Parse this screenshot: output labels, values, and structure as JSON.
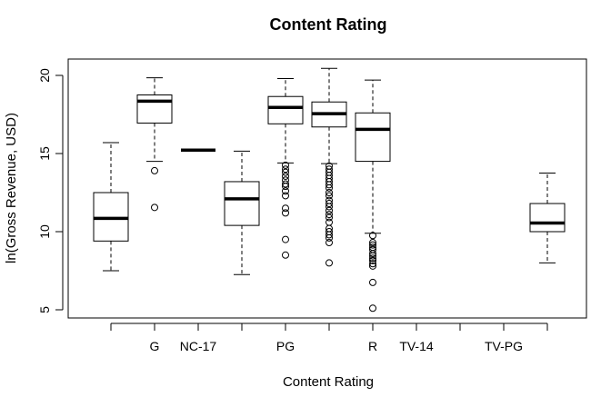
{
  "chart_data": {
    "type": "boxplot",
    "title": "Content Rating",
    "xlabel": "Content Rating",
    "ylabel": "ln(Gross Revenue, USD)",
    "ylim": [
      4.5,
      21
    ],
    "yticks": [
      5,
      10,
      15,
      20
    ],
    "grid": false,
    "groups": [
      {
        "slot": 1,
        "label": "",
        "whisker_low": 7.5,
        "q1": 9.4,
        "median": 10.85,
        "q3": 12.5,
        "whisker_high": 15.7,
        "outliers": []
      },
      {
        "slot": 2,
        "label": "G",
        "whisker_low": 14.5,
        "q1": 16.95,
        "median": 18.35,
        "q3": 18.75,
        "whisker_high": 19.85,
        "outliers": [
          13.9,
          11.55
        ]
      },
      {
        "slot": 3,
        "label": "NC-17",
        "whisker_low": 15.22,
        "q1": 15.22,
        "median": 15.22,
        "q3": 15.22,
        "whisker_high": 15.22,
        "outliers": []
      },
      {
        "slot": 4,
        "label": "",
        "whisker_low": 7.25,
        "q1": 10.4,
        "median": 12.1,
        "q3": 13.2,
        "whisker_high": 15.15,
        "outliers": []
      },
      {
        "slot": 5,
        "label": "PG",
        "whisker_low": 14.4,
        "q1": 16.9,
        "median": 17.95,
        "q3": 18.65,
        "whisker_high": 19.8,
        "outliers": [
          14.25,
          14.0,
          13.8,
          13.55,
          13.3,
          13.05,
          12.9,
          12.6,
          12.3,
          11.5,
          11.2,
          9.5,
          8.5
        ]
      },
      {
        "slot": 6,
        "label": "",
        "whisker_low": 14.35,
        "q1": 16.7,
        "median": 17.55,
        "q3": 18.3,
        "whisker_high": 20.45,
        "outliers": [
          14.2,
          14.0,
          13.8,
          13.6,
          13.4,
          13.2,
          13.0,
          12.8,
          12.5,
          12.3,
          12.0,
          11.8,
          11.6,
          11.35,
          11.1,
          10.9,
          10.6,
          10.2,
          10.0,
          9.8,
          9.6,
          9.3,
          8.0
        ]
      },
      {
        "slot": 7,
        "label": "R",
        "whisker_low": 9.9,
        "q1": 14.5,
        "median": 16.55,
        "q3": 17.6,
        "whisker_high": 19.7,
        "outliers": [
          9.75,
          9.3,
          9.15,
          9.0,
          8.85,
          8.6,
          8.45,
          8.3,
          8.15,
          7.95,
          7.8,
          6.75,
          5.1
        ]
      },
      {
        "slot": 8,
        "label": "TV-14",
        "empty": true
      },
      {
        "slot": 9,
        "label": "",
        "empty": true
      },
      {
        "slot": 10,
        "label": "TV-PG",
        "empty": true
      },
      {
        "slot": 11,
        "label": "",
        "whisker_low": 8.0,
        "q1": 10.0,
        "median": 10.55,
        "q3": 11.8,
        "whisker_high": 13.75,
        "outliers": []
      }
    ]
  }
}
